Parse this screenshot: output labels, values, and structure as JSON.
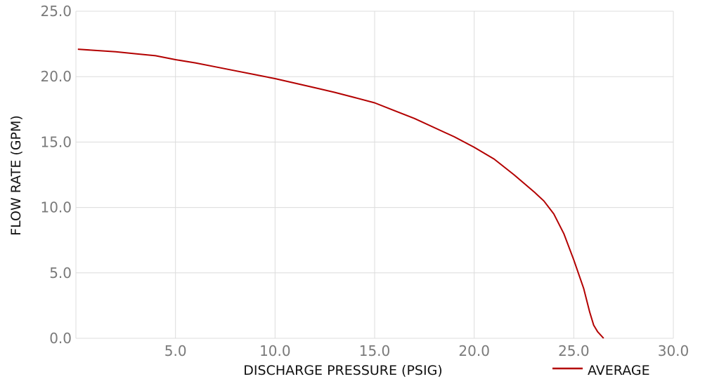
{
  "chart_data": {
    "type": "line",
    "xlabel": "DISCHARGE PRESSURE (PSIG)",
    "ylabel": "FLOW RATE (GPM)",
    "xlim": [
      0,
      30
    ],
    "ylim": [
      0,
      25
    ],
    "x_ticks": [
      "0.0",
      "5.0",
      "10.0",
      "15.0",
      "20.0",
      "25.0",
      "30.0"
    ],
    "y_ticks": [
      "0.0",
      "5.0",
      "10.0",
      "15.0",
      "20.0",
      "25.0"
    ],
    "grid": true,
    "legend_position": "bottom-right",
    "series": [
      {
        "name": "AVERAGE",
        "color": "#b30000",
        "x": [
          0.1,
          1.0,
          2.0,
          3.0,
          4.0,
          5.0,
          6.0,
          7.0,
          8.0,
          9.0,
          10.0,
          11.0,
          12.0,
          13.0,
          14.0,
          15.0,
          16.0,
          17.0,
          18.0,
          19.0,
          20.0,
          21.0,
          22.0,
          23.0,
          23.5,
          24.0,
          24.5,
          25.0,
          25.5,
          25.8,
          26.0,
          26.2,
          26.5
        ],
        "y": [
          22.1,
          22.0,
          21.9,
          21.75,
          21.6,
          21.3,
          21.05,
          20.75,
          20.45,
          20.15,
          19.85,
          19.5,
          19.15,
          18.8,
          18.4,
          18.0,
          17.4,
          16.8,
          16.1,
          15.4,
          14.6,
          13.7,
          12.5,
          11.2,
          10.5,
          9.5,
          8.0,
          6.0,
          3.8,
          2.0,
          1.0,
          0.5,
          0.0
        ]
      }
    ]
  }
}
